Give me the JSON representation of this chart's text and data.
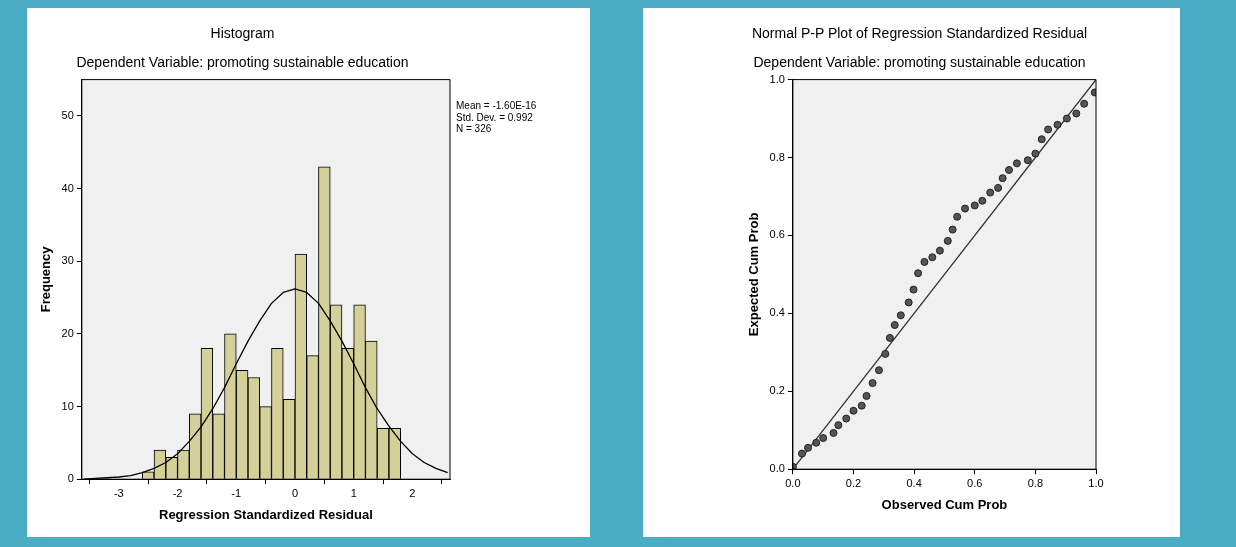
{
  "chart_data": [
    {
      "type": "histogram",
      "title": "Histogram",
      "subtitle": "Dependent Variable: promoting sustainable education",
      "xlabel": "Regression Standardized Residual",
      "ylabel": "Frequency",
      "bins": [
        -2.6,
        -2.4,
        -2.2,
        -2.0,
        -1.8,
        -1.6,
        -1.4,
        -1.2,
        -1.0,
        -0.8,
        -0.6,
        -0.4,
        -0.2,
        0,
        0.2,
        0.4,
        0.6,
        0.8,
        1.0,
        1.2,
        1.4,
        1.6,
        1.8
      ],
      "series": [
        {
          "type": "histogram",
          "color": "#d4d09a",
          "values": [
            1,
            4,
            3,
            4,
            9,
            18,
            9,
            20,
            15,
            14,
            10,
            18,
            11,
            31,
            17,
            43,
            24,
            18,
            24,
            19,
            7,
            7
          ]
        },
        {
          "type": "line",
          "color": "#000000",
          "x": [
            -3.6,
            -3.4,
            -3.2,
            -3.0,
            -2.8,
            -2.6,
            -2.4,
            -2.2,
            -2.0,
            -1.8,
            -1.6,
            -1.4,
            -1.2,
            -1.0,
            -0.8,
            -0.6,
            -0.4,
            -0.2,
            0,
            0.2,
            0.4,
            0.6,
            0.8,
            1.0,
            1.2,
            1.4,
            1.6,
            1.8,
            2.0,
            2.2,
            2.4,
            2.6
          ],
          "values": [
            0,
            0.1,
            0.2,
            0.3,
            0.5,
            0.9,
            1.5,
            2.3,
            3.5,
            5.2,
            7.2,
            9.7,
            12.6,
            15.9,
            19,
            21.8,
            24.2,
            25.7,
            26.2,
            25.7,
            24.2,
            21.8,
            19,
            15.9,
            12.6,
            9.7,
            7.3,
            5.2,
            3.5,
            2.3,
            1.5,
            0.9
          ]
        }
      ],
      "xlim": [
        -3.63,
        2.64
      ],
      "xticks": [
        -3,
        -2,
        -1,
        0,
        1,
        2
      ],
      "ylim": [
        0,
        55
      ],
      "yticks": [
        0,
        10,
        20,
        30,
        40,
        50
      ],
      "grid": false,
      "legend": false,
      "annotations": [
        "Mean = -1.60E-16",
        "Std. Dev. = 0.992",
        "N = 326"
      ]
    },
    {
      "type": "scatter",
      "title": "Normal P-P Plot of Regression Standardized Residual",
      "subtitle": "Dependent Variable: promoting sustainable education",
      "xlabel": "Observed Cum Prob",
      "ylabel": "Expected Cum Prob",
      "series": [
        {
          "type": "scatter",
          "color": "#555555",
          "marker": "circle",
          "x": [
            0,
            0.03,
            0.05,
            0.077,
            0.1,
            0.134,
            0.15,
            0.176,
            0.2,
            0.227,
            0.243,
            0.263,
            0.284,
            0.305,
            0.32,
            0.336,
            0.356,
            0.382,
            0.398,
            0.413,
            0.434,
            0.46,
            0.485,
            0.511,
            0.527,
            0.542,
            0.568,
            0.6,
            0.625,
            0.651,
            0.677,
            0.692,
            0.713,
            0.739,
            0.775,
            0.8,
            0.821,
            0.842,
            0.873,
            0.904,
            0.935,
            0.961,
            0.996
          ],
          "values": [
            0.006,
            0.04,
            0.055,
            0.068,
            0.08,
            0.093,
            0.113,
            0.13,
            0.15,
            0.163,
            0.188,
            0.221,
            0.254,
            0.296,
            0.337,
            0.37,
            0.395,
            0.428,
            0.461,
            0.503,
            0.532,
            0.544,
            0.561,
            0.586,
            0.615,
            0.648,
            0.669,
            0.677,
            0.689,
            0.71,
            0.722,
            0.747,
            0.768,
            0.785,
            0.793,
            0.81,
            0.847,
            0.872,
            0.884,
            0.9,
            0.913,
            0.938,
            0.967
          ]
        },
        {
          "type": "line",
          "color": "#333333",
          "x": [
            0,
            1
          ],
          "values": [
            0,
            1
          ]
        }
      ],
      "xlim": [
        0,
        1
      ],
      "xticks": [
        {
          "value": 0,
          "label": "0.0"
        },
        {
          "value": 0.2,
          "label": "0.2"
        },
        {
          "value": 0.4,
          "label": "0.4"
        },
        {
          "value": 0.6,
          "label": "0.6"
        },
        {
          "value": 0.8,
          "label": "0.8"
        },
        {
          "value": 1,
          "label": "1.0"
        }
      ],
      "ylim": [
        0,
        1
      ],
      "yticks": [
        {
          "value": 0,
          "label": "0.0"
        },
        {
          "value": 0.2,
          "label": "0.2"
        },
        {
          "value": 0.4,
          "label": "0.4"
        },
        {
          "value": 0.6,
          "label": "0.6"
        },
        {
          "value": 0.8,
          "label": "0.8"
        },
        {
          "value": 1,
          "label": "1.0"
        }
      ],
      "grid": false,
      "legend": false
    }
  ]
}
